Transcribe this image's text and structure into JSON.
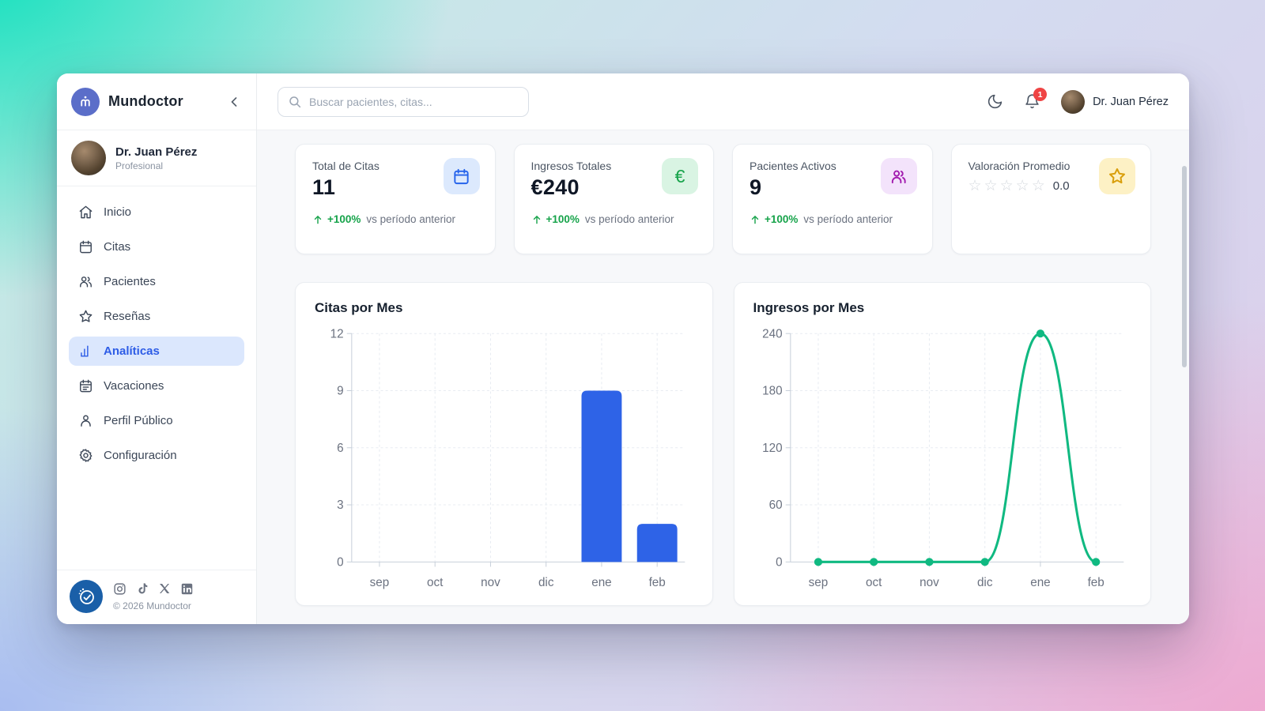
{
  "app": {
    "name": "Mundoctor",
    "copyright": "© 2026 Mundoctor"
  },
  "sidebar": {
    "profile": {
      "name": "Dr. Juan Pérez",
      "role": "Profesional"
    },
    "items": [
      {
        "label": "Inicio",
        "icon": "home-icon"
      },
      {
        "label": "Citas",
        "icon": "calendar-icon"
      },
      {
        "label": "Pacientes",
        "icon": "users-icon"
      },
      {
        "label": "Reseñas",
        "icon": "star-icon"
      },
      {
        "label": "Analíticas",
        "icon": "bar-chart-icon",
        "active": true
      },
      {
        "label": "Vacaciones",
        "icon": "calendar-lines-icon"
      },
      {
        "label": "Perfil Público",
        "icon": "user-icon"
      },
      {
        "label": "Configuración",
        "icon": "gear-icon"
      }
    ],
    "social": [
      "instagram-icon",
      "tiktok-icon",
      "x-icon",
      "linkedin-icon"
    ]
  },
  "topbar": {
    "search_placeholder": "Buscar pacientes, citas...",
    "notification_count": "1",
    "user_name": "Dr. Juan Pérez"
  },
  "stats": [
    {
      "label": "Total de Citas",
      "value": "11",
      "trend": "+100%",
      "trend_note": "vs período anterior",
      "icon": "calendar-icon",
      "icon_bg": "#dce9fd",
      "icon_color": "#2563eb"
    },
    {
      "label": "Ingresos Totales",
      "value": "€240",
      "trend": "+100%",
      "trend_note": "vs período anterior",
      "icon": "euro-icon",
      "icon_bg": "#d9f4e3",
      "icon_color": "#16a34a"
    },
    {
      "label": "Pacientes Activos",
      "value": "9",
      "trend": "+100%",
      "trend_note": "vs período anterior",
      "icon": "users-icon",
      "icon_bg": "#f3e3fb",
      "icon_color": "#a21caf"
    },
    {
      "label": "Valoración Promedio",
      "rating": "0.0",
      "stars_filled": 0,
      "stars_total": 5,
      "icon": "star-icon",
      "icon_bg": "#fdf1c5",
      "icon_color": "#d99e0b"
    }
  ],
  "chart_data": [
    {
      "type": "bar",
      "title": "Citas por Mes",
      "categories": [
        "sep",
        "oct",
        "nov",
        "dic",
        "ene",
        "feb"
      ],
      "values": [
        0,
        0,
        0,
        0,
        9,
        2
      ],
      "xlabel": "",
      "ylabel": "",
      "ylim": [
        0,
        12
      ],
      "yticks": [
        0,
        3,
        6,
        9,
        12
      ],
      "grid": "dashed",
      "legend": false,
      "color": "#2e63e7"
    },
    {
      "type": "line",
      "title": "Ingresos por Mes",
      "categories": [
        "sep",
        "oct",
        "nov",
        "dic",
        "ene",
        "feb"
      ],
      "values": [
        0,
        0,
        0,
        0,
        240,
        0
      ],
      "xlabel": "",
      "ylabel": "",
      "ylim": [
        0,
        240
      ],
      "yticks": [
        0,
        60,
        120,
        180,
        240
      ],
      "grid": "dashed",
      "legend": false,
      "point_markers": true,
      "color": "#10b981"
    }
  ]
}
